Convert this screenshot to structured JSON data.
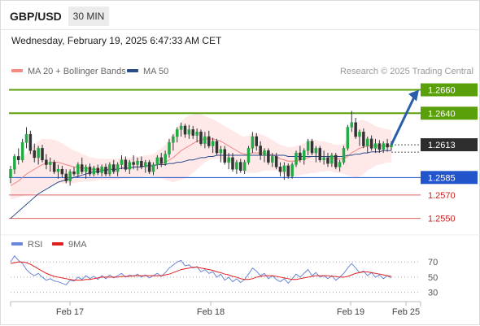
{
  "header": {
    "pair": "GBP/USD",
    "timeframe": "30 MIN",
    "timestamp": "Wednesday, February 19, 2025 6:47:33 AM CET"
  },
  "legend": {
    "items": [
      {
        "label": "MA 20 + Bollinger Bands",
        "color": "#f28b82"
      },
      {
        "label": "MA 50",
        "color": "#2b4c8c"
      }
    ],
    "source": "Research © 2025 Trading Central"
  },
  "chart_data": {
    "type": "candlestick",
    "ylim": [
      1.254,
      1.2668
    ],
    "x_labels": [
      "Feb 17",
      "Feb 18",
      "Feb 19",
      "Feb 25"
    ],
    "current_price": "1.2613",
    "price_lines": [
      {
        "label": "1.2660",
        "value": 1.266,
        "kind": "resistance",
        "color": "#5aa00a"
      },
      {
        "label": "1.2640",
        "value": 1.264,
        "kind": "resistance",
        "color": "#5aa00a"
      },
      {
        "label": "1.2585",
        "value": 1.2585,
        "kind": "pivot",
        "color": "#2255cc"
      },
      {
        "label": "1.2570",
        "value": 1.257,
        "kind": "support",
        "color": "#e06060"
      },
      {
        "label": "1.2550",
        "value": 1.255,
        "kind": "support",
        "color": "#e06060"
      }
    ],
    "forecast_arrow": {
      "from": 1.2613,
      "to": 1.266
    },
    "ohlc": [
      [
        1.2585,
        1.2595,
        1.258,
        1.2592
      ],
      [
        1.2592,
        1.2605,
        1.2588,
        1.2603
      ],
      [
        1.2603,
        1.261,
        1.2596,
        1.26
      ],
      [
        1.26,
        1.2618,
        1.2598,
        1.2615
      ],
      [
        1.2615,
        1.2628,
        1.261,
        1.2622
      ],
      [
        1.2622,
        1.2625,
        1.2605,
        1.2608
      ],
      [
        1.2608,
        1.2614,
        1.2598,
        1.2602
      ],
      [
        1.2602,
        1.2612,
        1.2596,
        1.261
      ],
      [
        1.261,
        1.2613,
        1.2598,
        1.26
      ],
      [
        1.26,
        1.2605,
        1.2592,
        1.2596
      ],
      [
        1.2596,
        1.2602,
        1.259,
        1.2598
      ],
      [
        1.2598,
        1.26,
        1.2588,
        1.259
      ],
      [
        1.259,
        1.2596,
        1.2584,
        1.2592
      ],
      [
        1.2592,
        1.2595,
        1.2585,
        1.2588
      ],
      [
        1.2588,
        1.2592,
        1.258,
        1.2582
      ],
      [
        1.2582,
        1.2592,
        1.2578,
        1.259
      ],
      [
        1.259,
        1.2594,
        1.2586,
        1.2588
      ],
      [
        1.2588,
        1.2598,
        1.2585,
        1.2596
      ],
      [
        1.2596,
        1.2602,
        1.2588,
        1.259
      ],
      [
        1.259,
        1.2596,
        1.2584,
        1.2594
      ],
      [
        1.2594,
        1.2597,
        1.2586,
        1.2588
      ],
      [
        1.2588,
        1.2595,
        1.2586,
        1.2593
      ],
      [
        1.2593,
        1.2596,
        1.2587,
        1.2589
      ],
      [
        1.2589,
        1.2596,
        1.2586,
        1.2594
      ],
      [
        1.2594,
        1.2597,
        1.2586,
        1.2588
      ],
      [
        1.2588,
        1.2598,
        1.2586,
        1.2596
      ],
      [
        1.2596,
        1.26,
        1.2588,
        1.259
      ],
      [
        1.259,
        1.2598,
        1.2586,
        1.2596
      ],
      [
        1.2596,
        1.2604,
        1.2592,
        1.26
      ],
      [
        1.26,
        1.2603,
        1.259,
        1.2592
      ],
      [
        1.2592,
        1.26,
        1.2588,
        1.2598
      ],
      [
        1.2598,
        1.2604,
        1.2592,
        1.2596
      ],
      [
        1.2596,
        1.2602,
        1.2591,
        1.2599
      ],
      [
        1.2599,
        1.2603,
        1.2592,
        1.2594
      ],
      [
        1.2594,
        1.26,
        1.2589,
        1.2598
      ],
      [
        1.2598,
        1.26,
        1.2588,
        1.259
      ],
      [
        1.259,
        1.2598,
        1.2587,
        1.2596
      ],
      [
        1.2596,
        1.2604,
        1.2592,
        1.2602
      ],
      [
        1.2602,
        1.2606,
        1.2594,
        1.2597
      ],
      [
        1.2597,
        1.2608,
        1.2595,
        1.2605
      ],
      [
        1.2605,
        1.2618,
        1.2602,
        1.2615
      ],
      [
        1.2615,
        1.2622,
        1.2608,
        1.262
      ],
      [
        1.262,
        1.2628,
        1.2615,
        1.2626
      ],
      [
        1.2626,
        1.2632,
        1.262,
        1.2629
      ],
      [
        1.2629,
        1.2631,
        1.2619,
        1.2622
      ],
      [
        1.2622,
        1.263,
        1.2618,
        1.2626
      ],
      [
        1.2626,
        1.2629,
        1.2618,
        1.2621
      ],
      [
        1.2621,
        1.2627,
        1.2615,
        1.2624
      ],
      [
        1.2624,
        1.2626,
        1.2612,
        1.2614
      ],
      [
        1.2614,
        1.2624,
        1.261,
        1.262
      ],
      [
        1.262,
        1.2625,
        1.261,
        1.2612
      ],
      [
        1.2612,
        1.2619,
        1.2606,
        1.2616
      ],
      [
        1.2616,
        1.2618,
        1.2604,
        1.2606
      ],
      [
        1.2606,
        1.2612,
        1.2598,
        1.2609
      ],
      [
        1.2609,
        1.2612,
        1.2596,
        1.2598
      ],
      [
        1.2598,
        1.2606,
        1.2592,
        1.2602
      ],
      [
        1.2602,
        1.2606,
        1.259,
        1.2592
      ],
      [
        1.2592,
        1.26,
        1.2588,
        1.2598
      ],
      [
        1.2598,
        1.2601,
        1.2589,
        1.2591
      ],
      [
        1.2591,
        1.26,
        1.2588,
        1.2598
      ],
      [
        1.2598,
        1.2612,
        1.2596,
        1.261
      ],
      [
        1.261,
        1.2624,
        1.2606,
        1.262
      ],
      [
        1.262,
        1.2623,
        1.2608,
        1.2612
      ],
      [
        1.2612,
        1.2616,
        1.26,
        1.2604
      ],
      [
        1.2604,
        1.261,
        1.2598,
        1.2608
      ],
      [
        1.2608,
        1.261,
        1.2596,
        1.2598
      ],
      [
        1.2598,
        1.2606,
        1.2594,
        1.2603
      ],
      [
        1.2603,
        1.2606,
        1.2592,
        1.2594
      ],
      [
        1.2594,
        1.2598,
        1.2586,
        1.259
      ],
      [
        1.259,
        1.2598,
        1.2583,
        1.2595
      ],
      [
        1.2595,
        1.2597,
        1.2584,
        1.2586
      ],
      [
        1.2586,
        1.2598,
        1.2584,
        1.2596
      ],
      [
        1.2596,
        1.2608,
        1.2594,
        1.2606
      ],
      [
        1.2606,
        1.2612,
        1.2598,
        1.26
      ],
      [
        1.26,
        1.261,
        1.2596,
        1.2608
      ],
      [
        1.2608,
        1.2618,
        1.2604,
        1.2616
      ],
      [
        1.2616,
        1.2618,
        1.2604,
        1.2606
      ],
      [
        1.2606,
        1.2612,
        1.2598,
        1.261
      ],
      [
        1.261,
        1.2612,
        1.2598,
        1.26
      ],
      [
        1.26,
        1.2608,
        1.2596,
        1.2602
      ],
      [
        1.2602,
        1.2606,
        1.2594,
        1.2597
      ],
      [
        1.2597,
        1.2606,
        1.2594,
        1.2604
      ],
      [
        1.2604,
        1.2606,
        1.2592,
        1.2594
      ],
      [
        1.2594,
        1.26,
        1.259,
        1.2598
      ],
      [
        1.2598,
        1.2612,
        1.2596,
        1.261
      ],
      [
        1.261,
        1.263,
        1.2608,
        1.2628
      ],
      [
        1.2628,
        1.2642,
        1.2624,
        1.2632
      ],
      [
        1.2632,
        1.2636,
        1.2618,
        1.262
      ],
      [
        1.262,
        1.2626,
        1.2612,
        1.2624
      ],
      [
        1.2624,
        1.2627,
        1.261,
        1.2612
      ],
      [
        1.2612,
        1.262,
        1.2606,
        1.2618
      ],
      [
        1.2618,
        1.2621,
        1.2608,
        1.261
      ],
      [
        1.261,
        1.2618,
        1.2606,
        1.2614
      ],
      [
        1.2614,
        1.2617,
        1.2606,
        1.2609
      ],
      [
        1.2609,
        1.2616,
        1.2606,
        1.2614
      ],
      [
        1.2614,
        1.2618,
        1.2607,
        1.2611
      ],
      [
        1.2611,
        1.2616,
        1.2608,
        1.2613
      ]
    ],
    "ma20": [
      1.2578,
      1.258,
      1.2582,
      1.2585,
      1.2588,
      1.259,
      1.2592,
      1.2594,
      1.2596,
      1.2597,
      1.2598,
      1.2598,
      1.2598,
      1.2597,
      1.2596,
      1.2595,
      1.2594,
      1.2594,
      1.2593,
      1.2593,
      1.2592,
      1.2592,
      1.2592,
      1.2592,
      1.2592,
      1.2592,
      1.2592,
      1.2592,
      1.2593,
      1.2593,
      1.2593,
      1.2594,
      1.2594,
      1.2594,
      1.2595,
      1.2595,
      1.2595,
      1.2596,
      1.2597,
      1.2598,
      1.26,
      1.2602,
      1.2605,
      1.2608,
      1.261,
      1.2612,
      1.2614,
      1.2616,
      1.2617,
      1.2618,
      1.2618,
      1.2618,
      1.2617,
      1.2616,
      1.2614,
      1.2612,
      1.261,
      1.2608,
      1.2606,
      1.2605,
      1.2605,
      1.2606,
      1.2606,
      1.2606,
      1.2606,
      1.2605,
      1.2604,
      1.2603,
      1.2601,
      1.26,
      1.2599,
      1.2599,
      1.2599,
      1.26,
      1.2601,
      1.2602,
      1.2603,
      1.2603,
      1.2603,
      1.2603,
      1.2603,
      1.2602,
      1.2601,
      1.2601,
      1.2601,
      1.2603,
      1.2606,
      1.2608,
      1.261,
      1.2611,
      1.2612,
      1.2612,
      1.2612,
      1.2612,
      1.2612,
      1.2612,
      1.2612
    ],
    "ma50": [
      1.255,
      1.2553,
      1.2556,
      1.2559,
      1.2562,
      1.2565,
      1.2568,
      1.2571,
      1.2573,
      1.2575,
      1.2577,
      1.2579,
      1.2581,
      1.2582,
      1.2583,
      1.2584,
      1.2585,
      1.2586,
      1.2587,
      1.2588,
      1.2589,
      1.259,
      1.259,
      1.2591,
      1.2591,
      1.2592,
      1.2592,
      1.2592,
      1.2593,
      1.2593,
      1.2593,
      1.2594,
      1.2594,
      1.2594,
      1.2595,
      1.2595,
      1.2595,
      1.2596,
      1.2596,
      1.2596,
      1.2597,
      1.2597,
      1.2598,
      1.2598,
      1.2599,
      1.26,
      1.26,
      1.2601,
      1.2602,
      1.2602,
      1.2603,
      1.2603,
      1.2604,
      1.2604,
      1.2604,
      1.2604,
      1.2604,
      1.2604,
      1.2604,
      1.2604,
      1.2604,
      1.2604,
      1.2604,
      1.2604,
      1.2604,
      1.2604,
      1.2604,
      1.2604,
      1.2604,
      1.2604,
      1.2603,
      1.2603,
      1.2603,
      1.2603,
      1.2603,
      1.2603,
      1.2603,
      1.2603,
      1.2603,
      1.2603,
      1.2603,
      1.2603,
      1.2603,
      1.2603,
      1.2603,
      1.2604,
      1.2604,
      1.2605,
      1.2605,
      1.2606,
      1.2606,
      1.2607,
      1.2607,
      1.2607,
      1.2608,
      1.2608,
      1.2608
    ],
    "band_width": [
      0.0012,
      0.0013,
      0.0014,
      0.0016,
      0.0018,
      0.002,
      0.0021,
      0.0022,
      0.0022,
      0.0021,
      0.002,
      0.0019,
      0.0018,
      0.0017,
      0.0016,
      0.0015,
      0.0014,
      0.0013,
      0.0012,
      0.0011,
      0.001,
      0.001,
      0.0009,
      0.0009,
      0.0009,
      0.0009,
      0.0009,
      0.0009,
      0.0009,
      0.0009,
      0.0009,
      0.0009,
      0.0009,
      0.0009,
      0.0009,
      0.0009,
      0.001,
      0.0011,
      0.0013,
      0.0015,
      0.0018,
      0.0021,
      0.0023,
      0.0025,
      0.0026,
      0.0026,
      0.0025,
      0.0024,
      0.0022,
      0.002,
      0.0018,
      0.0017,
      0.0016,
      0.0015,
      0.0015,
      0.0015,
      0.0015,
      0.0015,
      0.0015,
      0.0015,
      0.0016,
      0.0017,
      0.0017,
      0.0016,
      0.0015,
      0.0014,
      0.0013,
      0.0012,
      0.0012,
      0.0012,
      0.0012,
      0.0012,
      0.0013,
      0.0013,
      0.0013,
      0.0014,
      0.0014,
      0.0014,
      0.0013,
      0.0013,
      0.0012,
      0.0012,
      0.0012,
      0.0012,
      0.0013,
      0.0016,
      0.002,
      0.0023,
      0.0024,
      0.0023,
      0.0021,
      0.0019,
      0.0017,
      0.0016,
      0.0015,
      0.0014,
      0.0014
    ]
  },
  "rsi_panel": {
    "legend": [
      {
        "label": "RSI",
        "color": "#6a86d8"
      },
      {
        "label": "9MA",
        "color": "#e02020"
      }
    ],
    "levels": [
      "70",
      "50",
      "30"
    ],
    "level_values": [
      70,
      50,
      30
    ],
    "ylim": [
      20,
      82
    ],
    "rsi": [
      70,
      78,
      72,
      68,
      60,
      55,
      52,
      55,
      50,
      46,
      48,
      45,
      44,
      42,
      40,
      46,
      45,
      50,
      47,
      52,
      48,
      51,
      47,
      52,
      48,
      53,
      49,
      52,
      55,
      50,
      53,
      51,
      54,
      50,
      53,
      49,
      52,
      55,
      51,
      56,
      62,
      66,
      70,
      72,
      65,
      66,
      62,
      64,
      57,
      60,
      55,
      57,
      50,
      54,
      46,
      50,
      44,
      48,
      43,
      47,
      54,
      62,
      58,
      52,
      55,
      48,
      52,
      47,
      44,
      48,
      42,
      48,
      54,
      50,
      55,
      60,
      52,
      56,
      50,
      52,
      48,
      52,
      46,
      50,
      55,
      62,
      68,
      62,
      56,
      58,
      52,
      56,
      50,
      53,
      48,
      52,
      49
    ],
    "rsi_ma": [
      68,
      69,
      70,
      70,
      69,
      67,
      64,
      61,
      58,
      55,
      53,
      51,
      50,
      49,
      48,
      47,
      46,
      46,
      46,
      47,
      47,
      48,
      49,
      50,
      50,
      50,
      50,
      50,
      51,
      51,
      51,
      52,
      52,
      52,
      52,
      52,
      52,
      52,
      52,
      53,
      54,
      56,
      58,
      60,
      61,
      62,
      63,
      63,
      62,
      61,
      60,
      59,
      57,
      56,
      54,
      53,
      51,
      50,
      48,
      47,
      47,
      48,
      50,
      51,
      52,
      52,
      52,
      51,
      50,
      49,
      48,
      47,
      47,
      48,
      49,
      50,
      51,
      52,
      52,
      52,
      52,
      51,
      51,
      50,
      50,
      51,
      53,
      55,
      56,
      57,
      57,
      56,
      55,
      54,
      53,
      52,
      51
    ]
  }
}
